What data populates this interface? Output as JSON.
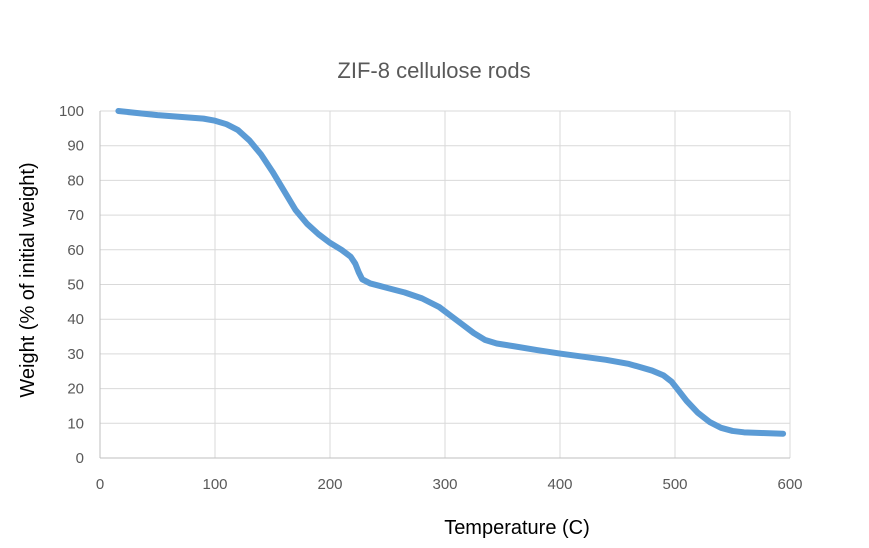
{
  "colors": {
    "series": "#5b9bd5",
    "grid": "#d9d9d9",
    "text": "#595959"
  },
  "chart_data": {
    "type": "line",
    "title": "ZIF-8 cellulose rods",
    "xlabel": "Temperature (C)",
    "ylabel": "Weight (% of initial weight)",
    "xlim": [
      0,
      600
    ],
    "ylim": [
      0,
      100
    ],
    "x_ticks": [
      0,
      100,
      200,
      300,
      400,
      500,
      600
    ],
    "y_ticks": [
      0,
      10,
      20,
      30,
      40,
      50,
      60,
      70,
      80,
      90,
      100
    ],
    "grid": true,
    "legend": "none",
    "series": [
      {
        "points": [
          [
            16,
            100
          ],
          [
            30,
            99.5
          ],
          [
            50,
            98.8
          ],
          [
            70,
            98.3
          ],
          [
            90,
            97.8
          ],
          [
            100,
            97.2
          ],
          [
            110,
            96.2
          ],
          [
            120,
            94.5
          ],
          [
            130,
            91.5
          ],
          [
            140,
            87.5
          ],
          [
            150,
            82.5
          ],
          [
            160,
            77
          ],
          [
            170,
            71.5
          ],
          [
            180,
            67.5
          ],
          [
            190,
            64.5
          ],
          [
            200,
            62
          ],
          [
            210,
            60
          ],
          [
            218,
            58
          ],
          [
            222,
            56
          ],
          [
            225,
            53.5
          ],
          [
            228,
            51.5
          ],
          [
            235,
            50.3
          ],
          [
            250,
            49
          ],
          [
            265,
            47.7
          ],
          [
            280,
            46
          ],
          [
            295,
            43.5
          ],
          [
            305,
            41
          ],
          [
            315,
            38.5
          ],
          [
            325,
            36
          ],
          [
            335,
            34
          ],
          [
            345,
            33
          ],
          [
            360,
            32.2
          ],
          [
            380,
            31.1
          ],
          [
            400,
            30.1
          ],
          [
            420,
            29.2
          ],
          [
            440,
            28.3
          ],
          [
            460,
            27.1
          ],
          [
            480,
            25.2
          ],
          [
            490,
            23.8
          ],
          [
            497,
            22
          ],
          [
            503,
            19.5
          ],
          [
            510,
            16.5
          ],
          [
            520,
            13
          ],
          [
            530,
            10.4
          ],
          [
            540,
            8.7
          ],
          [
            550,
            7.8
          ],
          [
            560,
            7.4
          ],
          [
            575,
            7.2
          ],
          [
            594,
            7.0
          ]
        ]
      }
    ]
  }
}
